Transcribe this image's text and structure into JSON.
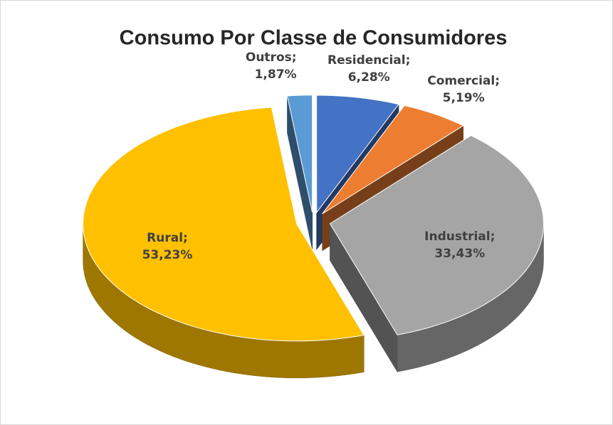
{
  "chart_data": {
    "type": "pie3d",
    "title": "Consumo Por Classe de Consumidores",
    "categories": [
      "Residencial",
      "Comercial",
      "Industrial",
      "Rural",
      "Outros"
    ],
    "values": [
      6.28,
      5.19,
      33.43,
      53.23,
      1.87
    ],
    "value_labels": [
      "6,28%",
      "5,19%",
      "33,43%",
      "53,23%",
      "1,87%"
    ],
    "label_separator": ";",
    "colors": [
      "#4472c4",
      "#ed7d31",
      "#a5a5a5",
      "#ffc000",
      "#5b9bd5"
    ]
  }
}
